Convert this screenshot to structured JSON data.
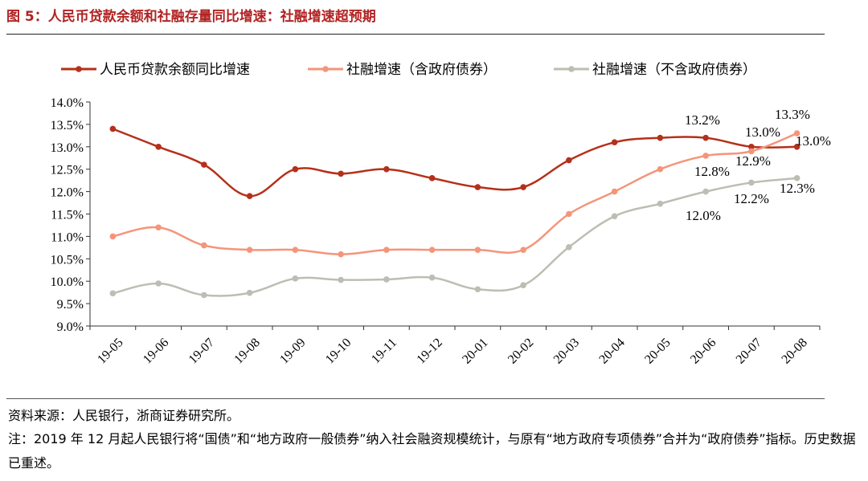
{
  "figure": {
    "title": "图 5：人民币贷款余额和社融存量同比增速：社融增速超预期",
    "source": "资料来源：人民银行，浙商证券研究所。",
    "note": "注：2019 年 12 月起人民银行将“国债”和“地方政府一般债券”纳入社会融资规模统计，与原有“地方政府专项债券”合并为“政府债券”指标。历史数据已重述。"
  },
  "chart_data": {
    "type": "line",
    "categories": [
      "19-05",
      "19-06",
      "19-07",
      "19-08",
      "19-09",
      "19-10",
      "19-11",
      "19-12",
      "20-01",
      "20-02",
      "20-03",
      "20-04",
      "20-05",
      "20-06",
      "20-07",
      "20-08"
    ],
    "ylim": [
      9.0,
      14.0
    ],
    "yticks": [
      "9.0%",
      "9.5%",
      "10.0%",
      "10.5%",
      "11.0%",
      "11.5%",
      "12.0%",
      "12.5%",
      "13.0%",
      "13.5%",
      "14.0%"
    ],
    "legend_position": "top",
    "grid": false,
    "series": [
      {
        "name": "人民币贷款余额同比增速",
        "color": "#b5301a",
        "values": [
          13.4,
          13.0,
          12.6,
          11.9,
          12.5,
          12.4,
          12.5,
          12.3,
          12.1,
          12.1,
          12.7,
          13.1,
          13.2,
          13.2,
          13.0,
          13.0
        ]
      },
      {
        "name": "社融增速（含政府债券）",
        "color": "#f4957a",
        "values": [
          11.0,
          11.2,
          10.8,
          10.7,
          10.7,
          10.6,
          10.7,
          10.7,
          10.7,
          10.7,
          11.5,
          12.0,
          12.5,
          12.8,
          12.9,
          13.3
        ]
      },
      {
        "name": "社融增速（不含政府债券）",
        "color": "#bdbdb3",
        "values": [
          9.73,
          9.95,
          9.69,
          9.74,
          10.06,
          10.03,
          10.04,
          10.08,
          9.82,
          9.91,
          10.76,
          11.45,
          11.73,
          12.0,
          12.2,
          12.3
        ]
      }
    ],
    "annotations": [
      "13.2%",
      "13.0%",
      "13.3%",
      "13.0%",
      "12.8%",
      "12.9%",
      "12.0%",
      "12.2%",
      "12.3%"
    ]
  }
}
